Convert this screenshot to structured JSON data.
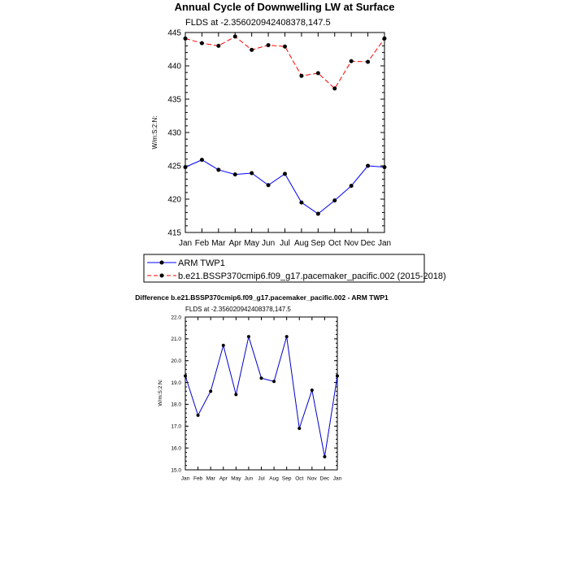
{
  "chart_data": [
    {
      "type": "line",
      "title": "Annual Cycle of Downwelling LW at Surface",
      "subtitle": "FLDS at -2.356020942408378,147.5",
      "ylabel": "W/m:S:2:N:",
      "ylim": [
        415,
        445
      ],
      "yticks": [
        "415",
        "420",
        "425",
        "430",
        "435",
        "440",
        "445"
      ],
      "categories": [
        "Jan",
        "Feb",
        "Mar",
        "Apr",
        "May",
        "Jun",
        "Jul",
        "Aug",
        "Sep",
        "Oct",
        "Nov",
        "Dec",
        "Jan"
      ],
      "legend_position": "bottom",
      "series": [
        {
          "name": "ARM TWP1",
          "color": "#0000ff",
          "style": "solid",
          "values": [
            424.8,
            425.9,
            424.4,
            423.7,
            423.9,
            422.1,
            423.8,
            419.5,
            417.8,
            419.8,
            422.0,
            425.0,
            424.8
          ]
        },
        {
          "name": "b.e21.BSSP370cmip6.f09_g17.pacemaker_pacific.002 (2015-2018)",
          "color": "#ff0000",
          "style": "dashed",
          "values": [
            444.1,
            443.4,
            443.0,
            444.4,
            442.4,
            443.1,
            442.9,
            438.5,
            438.9,
            436.6,
            440.7,
            440.6,
            444.1
          ]
        }
      ]
    },
    {
      "type": "line",
      "title": "Difference b.e21.BSSP370cmip6.f09_g17.pacemaker_pacific.002 - ARM TWP1",
      "subtitle": "FLDS at -2.356020942408378,147.5",
      "ylabel": "W/m:S:2:N:",
      "ylim": [
        15.0,
        22.0
      ],
      "yticks": [
        "15.0",
        "16.0",
        "17.0",
        "18.0",
        "19.0",
        "20.0",
        "21.0",
        "22.0"
      ],
      "categories": [
        "Jan",
        "Feb",
        "Mar",
        "Apr",
        "May",
        "Jun",
        "Jul",
        "Aug",
        "Sep",
        "Oct",
        "Nov",
        "Dec",
        "Jan"
      ],
      "series": [
        {
          "color": "#0000cc",
          "style": "solid",
          "values": [
            19.3,
            17.5,
            18.6,
            20.7,
            18.45,
            21.1,
            19.2,
            19.05,
            21.1,
            16.9,
            18.65,
            15.6,
            19.3
          ]
        }
      ]
    }
  ]
}
